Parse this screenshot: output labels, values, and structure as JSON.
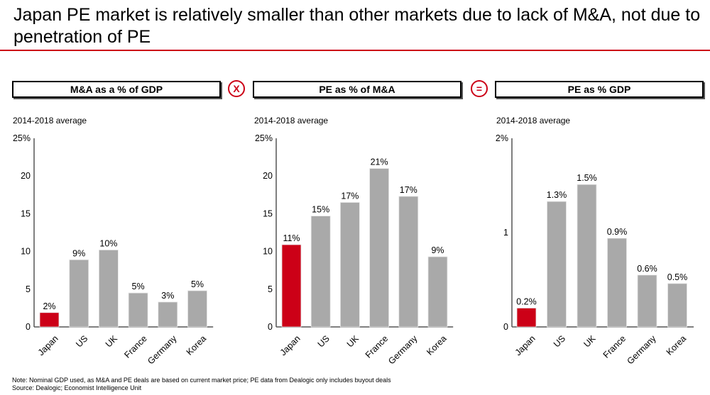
{
  "title": "Japan PE market is relatively smaller than other markets due to lack of M&A, not due to penetration of PE",
  "operators": {
    "multiply": "X",
    "equals": "="
  },
  "colors": {
    "highlight": "#cc0017",
    "bar": "#a9a9a9",
    "axis": "#555555"
  },
  "note": "Note: Nominal GDP used, as M&A and PE deals are based on current market price; PE data from Dealogic only includes buyout deals",
  "source": "Source: Dealogic; Economist Intelligence Unit",
  "chart_data": [
    {
      "type": "bar",
      "title": "M&A as a % of GDP",
      "subtitle": "2014-2018 average",
      "categories": [
        "Japan",
        "US",
        "UK",
        "France",
        "Germany",
        "Korea"
      ],
      "values": [
        1.9,
        8.9,
        10.2,
        4.5,
        3.3,
        4.8
      ],
      "data_labels": [
        "2%",
        "9%",
        "10%",
        "5%",
        "3%",
        "5%"
      ],
      "highlight": "Japan",
      "yticks": [
        "0",
        "5",
        "10",
        "15",
        "20",
        "25%"
      ],
      "ytick_values": [
        0,
        5,
        10,
        15,
        20,
        25
      ],
      "ylim": [
        0,
        25
      ],
      "grid": false
    },
    {
      "type": "bar",
      "title": "PE as % of M&A",
      "subtitle": "2014-2018 average",
      "categories": [
        "Japan",
        "US",
        "UK",
        "France",
        "Germany",
        "Korea"
      ],
      "values": [
        10.9,
        14.7,
        16.5,
        21.0,
        17.3,
        9.3
      ],
      "data_labels": [
        "11%",
        "15%",
        "17%",
        "21%",
        "17%",
        "9%"
      ],
      "highlight": "Japan",
      "yticks": [
        "0",
        "5",
        "10",
        "15",
        "20",
        "25%"
      ],
      "ytick_values": [
        0,
        5,
        10,
        15,
        20,
        25
      ],
      "ylim": [
        0,
        25
      ],
      "grid": false
    },
    {
      "type": "bar",
      "title": "PE as % GDP",
      "subtitle": "2014-2018 average",
      "categories": [
        "Japan",
        "US",
        "UK",
        "France",
        "Germany",
        "Korea"
      ],
      "values": [
        0.2,
        1.33,
        1.51,
        0.94,
        0.55,
        0.46
      ],
      "data_labels": [
        "0.2%",
        "1.3%",
        "1.5%",
        "0.9%",
        "0.6%",
        "0.5%"
      ],
      "highlight": "Japan",
      "yticks": [
        "0",
        "1",
        "2%"
      ],
      "ytick_values": [
        0,
        1,
        2
      ],
      "ylim": [
        0,
        2
      ],
      "grid": false
    }
  ]
}
